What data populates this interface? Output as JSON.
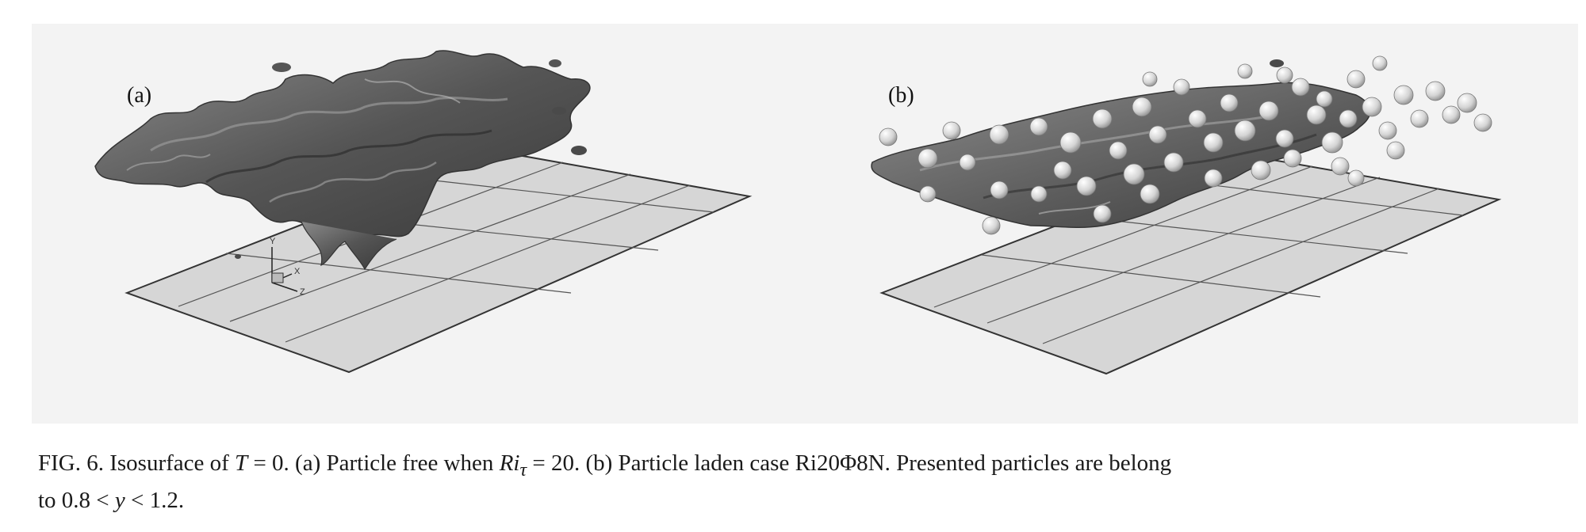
{
  "figure": {
    "panel_a_label": "(a)",
    "panel_b_label": "(b)",
    "axes_triad": {
      "y_label": "Y",
      "x_label": "X",
      "z_label": "Z"
    },
    "caption": {
      "prefix": "FIG. 6. Isosurface of ",
      "var_T": "T",
      "eq_T": " = 0. (a) Particle free when ",
      "var_Ri": "Ri",
      "sub_tau": "τ",
      "eq_Ri": " = 20. (b) Particle laden case Ri20Φ8N. Presented particles are belong",
      "line2_pre": "to 0.8 < ",
      "var_y": "y",
      "line2_post": " < 1.2."
    }
  },
  "colors": {
    "plane_fill": "#d6d6d6",
    "plane_stroke": "#333333",
    "surface_dark": "#4a4a4a",
    "surface_mid": "#6e6e6e",
    "surface_light": "#9a9a9a",
    "particle": "#e2e2e2"
  }
}
